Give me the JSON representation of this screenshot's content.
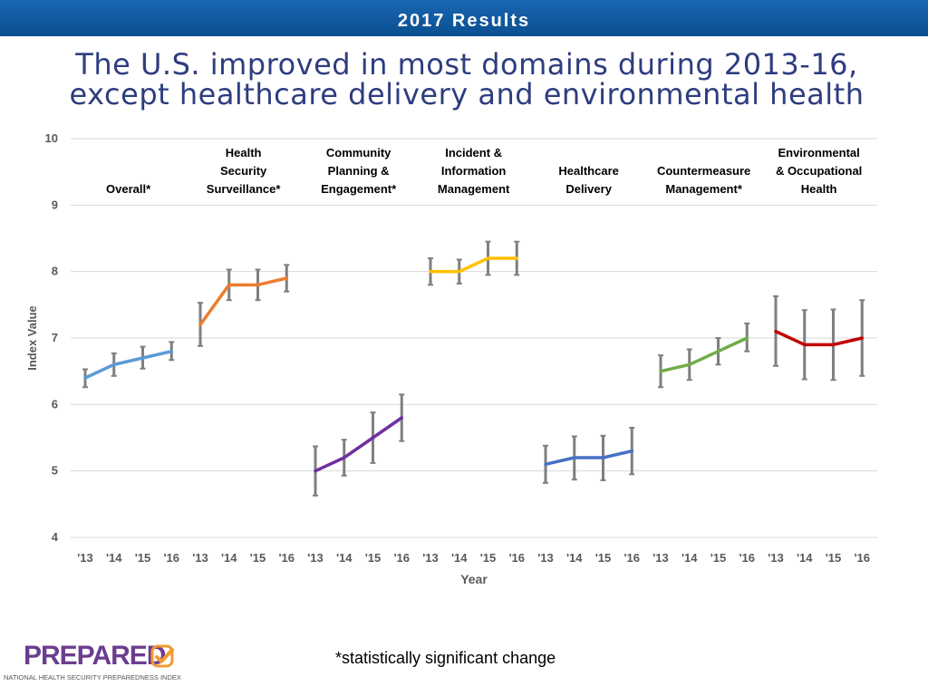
{
  "header": {
    "title": "2017 Results"
  },
  "slide": {
    "title_line1": "The U.S. improved in most domains during 2013-16,",
    "title_line2": "except healthcare delivery and environmental health",
    "footnote": "*statistically significant change"
  },
  "logo": {
    "word": "PREPARED",
    "subtitle": "NATIONAL HEALTH SECURITY PREPAREDNESS INDEX"
  },
  "chart_data": {
    "type": "line",
    "ylabel": "Index Value",
    "xlabel": "Year",
    "ylim": [
      4,
      10
    ],
    "yticks": [
      "4",
      "5",
      "6",
      "7",
      "8",
      "9",
      "10"
    ],
    "grid": true,
    "years": [
      "'13",
      "'14",
      "'15",
      "'16"
    ],
    "series": [
      {
        "name": "Overall*",
        "label_lines": [
          "Overall*"
        ],
        "color": "#5b9bd5",
        "values": [
          6.4,
          6.6,
          6.7,
          6.8
        ],
        "err_low": [
          6.26,
          6.43,
          6.54,
          6.67
        ],
        "err_high": [
          6.53,
          6.77,
          6.87,
          6.94
        ]
      },
      {
        "name": "Health Security Surveillance*",
        "label_lines": [
          "Health",
          "Security",
          "Surveillance*"
        ],
        "color": "#ed7d31",
        "values": [
          7.2,
          7.8,
          7.8,
          7.9
        ],
        "err_low": [
          6.88,
          7.57,
          7.57,
          7.7
        ],
        "err_high": [
          7.53,
          8.03,
          8.03,
          8.1
        ]
      },
      {
        "name": "Community Planning & Engagement*",
        "label_lines": [
          "Community",
          "Planning &",
          "Engagement*"
        ],
        "color": "#7030a0",
        "values": [
          5.0,
          5.2,
          5.5,
          5.8
        ],
        "err_low": [
          4.63,
          4.93,
          5.12,
          5.45
        ],
        "err_high": [
          5.37,
          5.47,
          5.88,
          6.15
        ]
      },
      {
        "name": "Incident & Information Management",
        "label_lines": [
          "Incident &",
          "Information",
          "Management"
        ],
        "color": "#ffc000",
        "values": [
          8.0,
          8.0,
          8.2,
          8.2
        ],
        "err_low": [
          7.8,
          7.82,
          7.95,
          7.95
        ],
        "err_high": [
          8.2,
          8.18,
          8.45,
          8.45
        ]
      },
      {
        "name": "Healthcare Delivery",
        "label_lines": [
          "Healthcare",
          "Delivery"
        ],
        "color": "#4472c4",
        "values": [
          5.1,
          5.2,
          5.2,
          5.3
        ],
        "err_low": [
          4.82,
          4.87,
          4.86,
          4.95
        ],
        "err_high": [
          5.38,
          5.52,
          5.53,
          5.65
        ]
      },
      {
        "name": "Countermeasure Management*",
        "label_lines": [
          "Countermeasure",
          "Management*"
        ],
        "color": "#70ad47",
        "values": [
          6.5,
          6.6,
          6.8,
          7.0
        ],
        "err_low": [
          6.26,
          6.37,
          6.6,
          6.8
        ],
        "err_high": [
          6.74,
          6.83,
          7.0,
          7.22
        ]
      },
      {
        "name": "Environmental & Occupational Health",
        "label_lines": [
          "Environmental",
          "& Occupational",
          "Health"
        ],
        "color": "#c00000",
        "values": [
          7.1,
          6.9,
          6.9,
          7.0
        ],
        "err_low": [
          6.58,
          6.38,
          6.37,
          6.43
        ],
        "err_high": [
          7.63,
          7.42,
          7.43,
          7.57
        ]
      }
    ]
  }
}
